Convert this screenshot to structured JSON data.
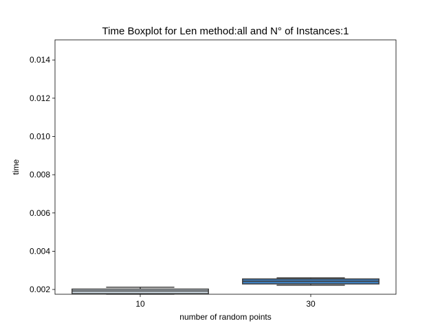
{
  "chart_data": {
    "type": "boxplot",
    "title": "Time Boxplot for Len method:all and N° of Instances:1",
    "xlabel": "number of random points",
    "ylabel": "time",
    "categories": [
      "10",
      "30"
    ],
    "ylim": [
      0.00175,
      0.01505
    ],
    "yticks": [
      0.002,
      0.004,
      0.006,
      0.008,
      0.01,
      0.012,
      0.014
    ],
    "ytick_labels": [
      "0.002",
      "0.004",
      "0.006",
      "0.008",
      "0.010",
      "0.012",
      "0.014"
    ],
    "grid": false,
    "legend": "none",
    "boxes": [
      {
        "category": "10",
        "whislo": 0.00175,
        "q1": 0.00178,
        "med": 0.00192,
        "q3": 0.00202,
        "whishi": 0.00212,
        "color": "#c4cfd8"
      },
      {
        "category": "30",
        "whislo": 0.00222,
        "q1": 0.00229,
        "med": 0.00243,
        "q3": 0.00255,
        "whishi": 0.00261,
        "color": "#3f7fbf"
      }
    ]
  }
}
